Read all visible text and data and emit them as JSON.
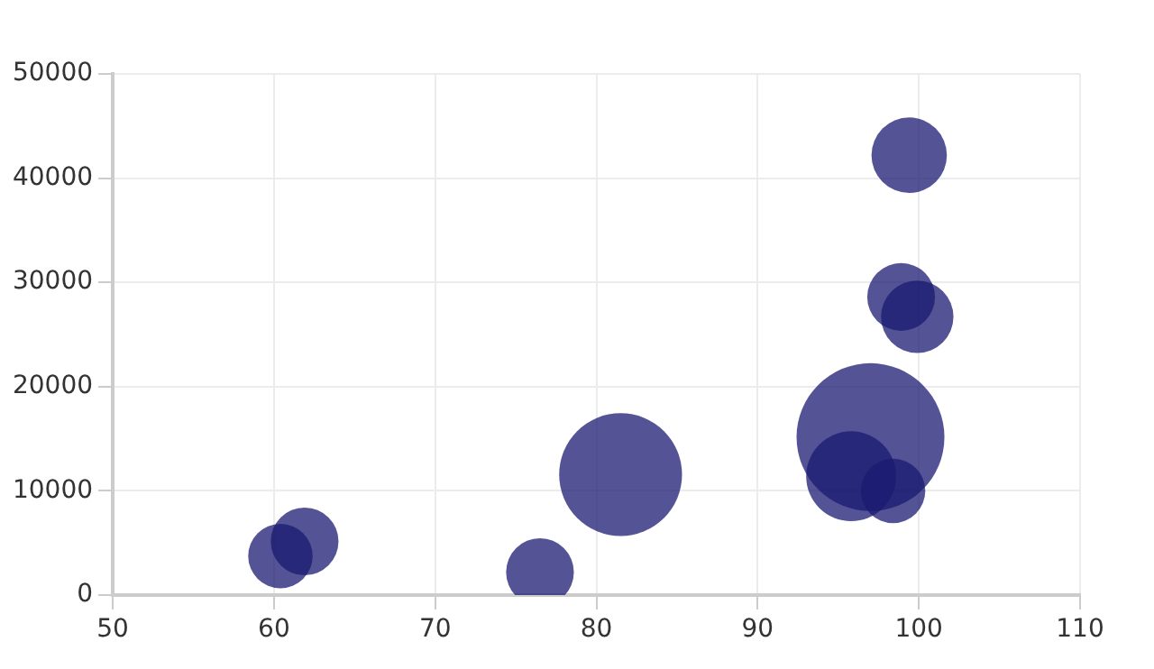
{
  "chart_data": {
    "type": "bubble",
    "x": [
      60.4,
      61.9,
      76.5,
      81.5,
      95.8,
      97,
      98.4,
      98.9,
      99.9,
      99.4
    ],
    "values": [
      3750,
      5150,
      2200,
      11560,
      11400,
      15150,
      10000,
      28600,
      26700,
      42200
    ],
    "sizes": [
      0.19,
      0.21,
      0.21,
      0.69,
      0.37,
      1,
      0.19,
      0.21,
      0.24,
      0.26
    ],
    "color": "#1a1a72",
    "xlim": [
      50,
      110
    ],
    "xticks": [
      50,
      60,
      70,
      80,
      90,
      100,
      110
    ],
    "ylim": [
      0,
      50000
    ],
    "yticks": [
      0,
      10000,
      20000,
      30000,
      40000,
      50000
    ],
    "grid": true,
    "legend": false
  }
}
